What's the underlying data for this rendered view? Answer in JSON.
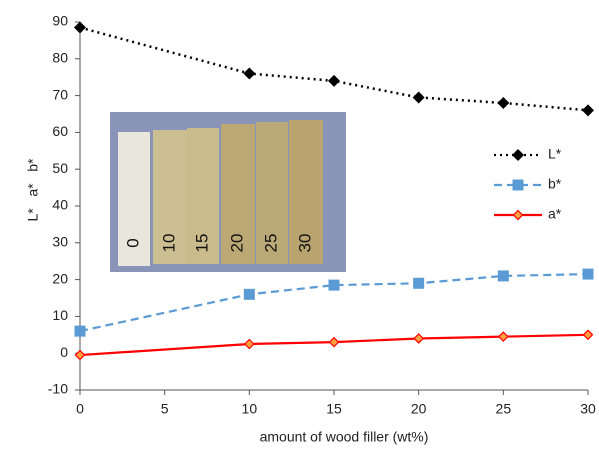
{
  "chart_data": {
    "type": "line",
    "x_label": "amount of wood filler (wt%)",
    "y_label": "L*   a*   b*",
    "x": [
      0,
      10,
      15,
      20,
      25,
      30
    ],
    "series": [
      {
        "name": "L*",
        "color": "#000000",
        "dash": "2,4",
        "marker": "diamond",
        "values": [
          88.5,
          76,
          74,
          69.5,
          68,
          66
        ]
      },
      {
        "name": "b*",
        "color": "#5b9bd5",
        "dash": "8,5",
        "marker": "square",
        "values": [
          6,
          16,
          18.5,
          19,
          21,
          21.5
        ]
      },
      {
        "name": "a*",
        "color": "#ff0000",
        "dash": "none",
        "marker": "small-diamond",
        "values": [
          -0.5,
          2.5,
          3,
          4,
          4.5,
          5
        ]
      }
    ],
    "xlim": [
      0,
      30
    ],
    "xticks": [
      0,
      5,
      10,
      15,
      20,
      25,
      30
    ],
    "ylim": [
      -10,
      90
    ],
    "yticks": [
      -10,
      0,
      10,
      20,
      30,
      40,
      50,
      60,
      70,
      80,
      90
    ],
    "legend": "right",
    "inset_labels": [
      "0",
      "10",
      "15",
      "20",
      "25",
      "30"
    ]
  }
}
